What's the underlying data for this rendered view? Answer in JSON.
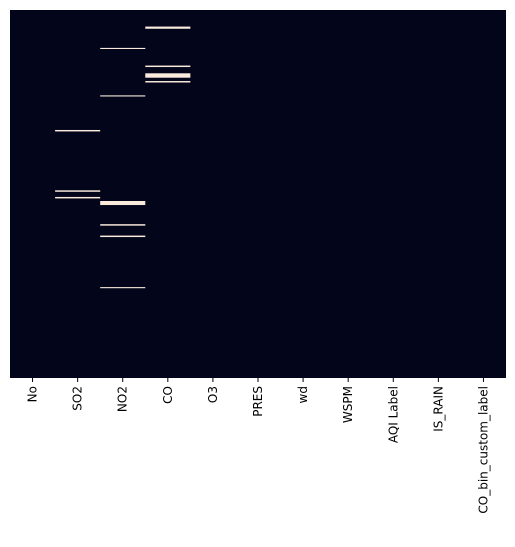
{
  "chart_data": {
    "type": "heatmap",
    "title": "",
    "xlabel": "",
    "ylabel": "",
    "columns": [
      "No",
      "SO2",
      "NO2",
      "CO",
      "O3",
      "PRES",
      "wd",
      "WSPM",
      "AQI Label",
      "IS_RAIN",
      "CO_bin_custom_label"
    ],
    "row_range": [
      0,
      1
    ],
    "grid": false,
    "colorbar": false,
    "colors": {
      "present": "#03051a",
      "missing": "#faebdd"
    },
    "missing": {
      "No": [],
      "SO2": [
        [
          0.326,
          0.33
        ],
        [
          0.49,
          0.494
        ],
        [
          0.508,
          0.512
        ]
      ],
      "NO2": [
        [
          0.103,
          0.106
        ],
        [
          0.232,
          0.235
        ],
        [
          0.519,
          0.53
        ],
        [
          0.582,
          0.586
        ],
        [
          0.613,
          0.617
        ],
        [
          0.753,
          0.756
        ]
      ],
      "CO": [
        [
          0.045,
          0.051
        ],
        [
          0.151,
          0.155
        ],
        [
          0.172,
          0.184
        ],
        [
          0.193,
          0.197
        ]
      ],
      "O3": [],
      "PRES": [],
      "wd": [],
      "WSPM": [],
      "AQI Label": [],
      "IS_RAIN": [],
      "CO_bin_custom_label": []
    }
  }
}
